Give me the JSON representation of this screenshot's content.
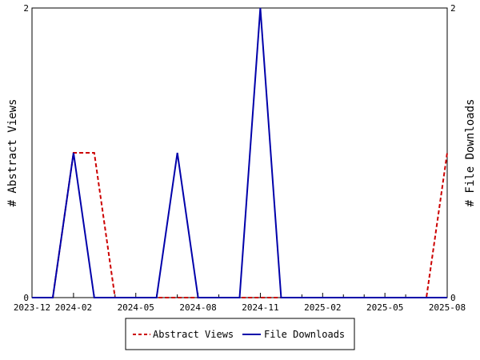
{
  "chart_data": {
    "type": "line",
    "title": "",
    "xlabel": "",
    "ylabel": "# Abstract Views",
    "y2label": "# File Downloads",
    "x_ticks": [
      "2023-12",
      "2024-02",
      "2024-05",
      "2024-08",
      "2024-11",
      "2025-02",
      "2025-05",
      "2025-08"
    ],
    "x": [
      "2023-12",
      "2024-01",
      "2024-02",
      "2024-03",
      "2024-04",
      "2024-05",
      "2024-06",
      "2024-07",
      "2024-08",
      "2024-09",
      "2024-10",
      "2024-11",
      "2024-12",
      "2025-01",
      "2025-02",
      "2025-03",
      "2025-04",
      "2025-05",
      "2025-06",
      "2025-07",
      "2025-08"
    ],
    "ylim": [
      0,
      2
    ],
    "y_ticks": [
      "0",
      "2"
    ],
    "y2lim": [
      0,
      2
    ],
    "y2_ticks": [
      "0",
      "2"
    ],
    "grid": false,
    "legend_position": "bottom",
    "series": [
      {
        "name": "Abstract Views",
        "axis": "left",
        "color": "#cc0000",
        "style": "dashed",
        "values": [
          0,
          0,
          1,
          1,
          0,
          0,
          0,
          0,
          0,
          0,
          0,
          0,
          0,
          0,
          0,
          0,
          0,
          0,
          0,
          0,
          1
        ]
      },
      {
        "name": "File Downloads",
        "axis": "right",
        "color": "#0000aa",
        "style": "solid",
        "values": [
          0,
          0,
          1,
          0,
          0,
          0,
          0,
          1,
          0,
          0,
          0,
          2,
          0,
          0,
          0,
          0,
          0,
          0,
          0,
          0,
          0
        ]
      }
    ]
  }
}
